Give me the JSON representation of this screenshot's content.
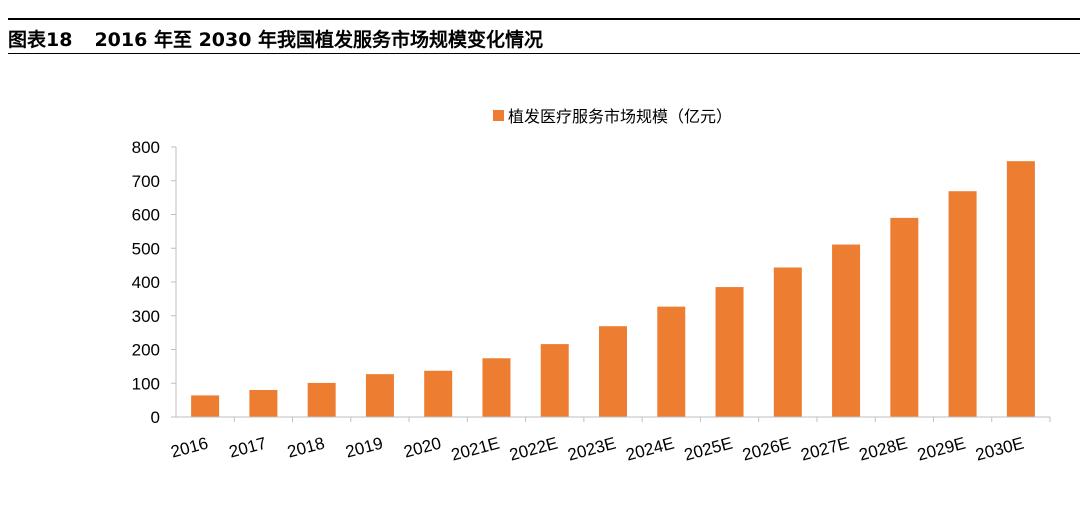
{
  "figure": {
    "number_label": "图表18",
    "title": "2016 年至 2030 年我国植发服务市场规模变化情况"
  },
  "colors": {
    "bar": "#ED7D31",
    "axis": "#bfbfbf"
  },
  "chart_data": {
    "type": "bar",
    "categories": [
      "2016",
      "2017",
      "2018",
      "2019",
      "2020",
      "2021E",
      "2022E",
      "2023E",
      "2024E",
      "2025E",
      "2026E",
      "2027E",
      "2028E",
      "2029E",
      "2030E"
    ],
    "series": [
      {
        "name": "植发医疗服务市场规模（亿元）",
        "values": [
          64,
          80,
          101,
          127,
          137,
          174,
          216,
          269,
          327,
          385,
          443,
          511,
          590,
          669,
          758
        ]
      }
    ],
    "ylim": [
      0,
      800
    ],
    "yticks": [
      0,
      100,
      200,
      300,
      400,
      500,
      600,
      700,
      800
    ],
    "legend_position": "top",
    "grid": false
  }
}
